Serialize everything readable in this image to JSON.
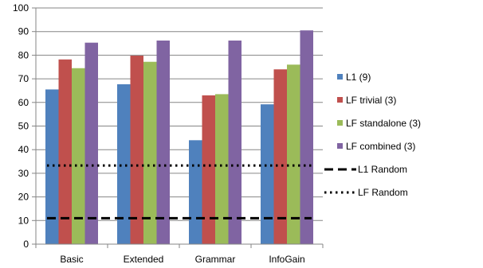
{
  "chart_data": {
    "type": "bar",
    "categories": [
      "Basic",
      "Extended",
      "Grammar",
      "InfoGain"
    ],
    "ylim": [
      0,
      100
    ],
    "yticks": [
      0,
      10,
      20,
      30,
      40,
      50,
      60,
      70,
      80,
      90,
      100
    ],
    "grid": true,
    "legend_position": "right",
    "series": [
      {
        "name": "L1 (9)",
        "color": "#4F81BD",
        "values": [
          65.5,
          67.7,
          44,
          59.2
        ]
      },
      {
        "name": "LF trivial (3)",
        "color": "#C0504D",
        "values": [
          78.2,
          79.8,
          63,
          74
        ]
      },
      {
        "name": "LF standalone (3)",
        "color": "#9BBB59",
        "values": [
          74.5,
          77.2,
          63.5,
          76
        ]
      },
      {
        "name": "LF combined (3)",
        "color": "#8064A2",
        "values": [
          85.3,
          86.2,
          86.2,
          90.5
        ]
      }
    ],
    "reference_lines": [
      {
        "name": "L1 Random",
        "value": 11,
        "style": "dashed",
        "color": "#000000"
      },
      {
        "name": "LF Random",
        "value": 33.3,
        "style": "dotted",
        "color": "#000000"
      }
    ]
  }
}
